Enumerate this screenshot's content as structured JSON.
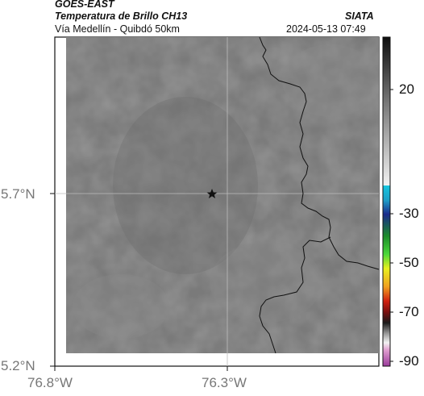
{
  "header": {
    "satellite": "GOES-EAST",
    "product": "Temperatura de Brillo CH13",
    "region": "Vía Medellín - Quibdó 50km",
    "agency": "SIATA",
    "timestamp": "2024-05-13 07:49"
  },
  "axes": {
    "lat_labels": [
      "5.7°N",
      "5.2°N"
    ],
    "lon_labels": [
      "76.8°W",
      "76.3°W"
    ]
  },
  "colorbar": {
    "labels": [
      "20",
      "-30",
      "-50",
      "-70",
      "-90"
    ]
  },
  "map": {
    "marker_icon": "star-icon",
    "colors": {
      "field_base": "#7a7a7a",
      "field_dark": "#6c6c6c",
      "field_light": "#8a8a8a",
      "boundary": "#111111",
      "gridline": "#bdbdbd"
    }
  }
}
